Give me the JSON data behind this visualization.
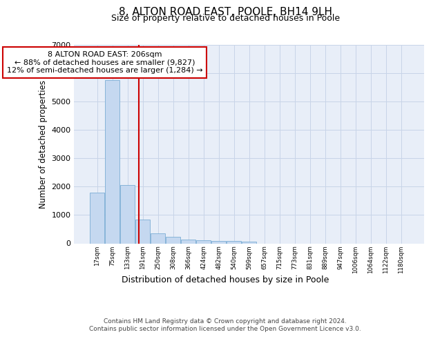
{
  "title1": "8, ALTON ROAD EAST, POOLE, BH14 9LH",
  "title2": "Size of property relative to detached houses in Poole",
  "xlabel": "Distribution of detached houses by size in Poole",
  "ylabel": "Number of detached properties",
  "bar_color": "#c5d8f0",
  "bar_edge_color": "#7aadd4",
  "bin_labels": [
    "17sqm",
    "75sqm",
    "133sqm",
    "191sqm",
    "250sqm",
    "308sqm",
    "366sqm",
    "424sqm",
    "482sqm",
    "540sqm",
    "599sqm",
    "657sqm",
    "715sqm",
    "773sqm",
    "831sqm",
    "889sqm",
    "947sqm",
    "1006sqm",
    "1064sqm",
    "1122sqm",
    "1180sqm"
  ],
  "bar_values": [
    1780,
    5750,
    2060,
    840,
    360,
    220,
    130,
    105,
    90,
    75,
    60,
    0,
    0,
    0,
    0,
    0,
    0,
    0,
    0,
    0,
    0
  ],
  "annotation_line1": "8 ALTON ROAD EAST: 206sqm",
  "annotation_line2": "← 88% of detached houses are smaller (9,827)",
  "annotation_line3": "12% of semi-detached houses are larger (1,284) →",
  "red_line_color": "#cc0000",
  "ylim": [
    0,
    7000
  ],
  "yticks": [
    0,
    1000,
    2000,
    3000,
    4000,
    5000,
    6000,
    7000
  ],
  "grid_color": "#c8d4e8",
  "background_color": "#e8eef8",
  "footer1": "Contains HM Land Registry data © Crown copyright and database right 2024.",
  "footer2": "Contains public sector information licensed under the Open Government Licence v3.0."
}
